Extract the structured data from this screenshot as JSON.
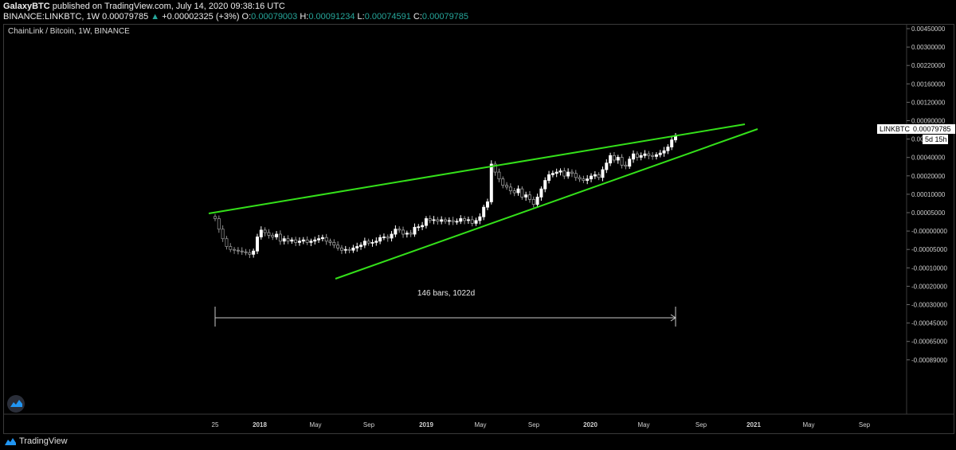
{
  "header": {
    "author": "GalaxyBTC",
    "published_text": "published on TradingView.com, July 14, 2020 09:38:16 UTC",
    "symbol_line": "BINANCE:LINKBTC, 1W",
    "last": "0.00079785",
    "change": "+0.00002325 (+3%)",
    "o_label": "O:",
    "o": "0.00079003",
    "h_label": "H:",
    "h": "0.00091234",
    "l_label": "L:",
    "l": "0.00074591",
    "c_label": "C:",
    "c": "0.00079785"
  },
  "footer": {
    "brand": "TradingView"
  },
  "chart_data": {
    "type": "candlestick",
    "title": "ChainLink / Bitcoin, 1W, BINANCE",
    "price_tag_symbol": "LINKBTC",
    "price_tag_value": "0.00079785",
    "countdown": "5d 15h",
    "measure_label": "146 bars, 1022d",
    "y_tick_labels": [
      "0.00450000",
      "0.00300000",
      "0.00220000",
      "0.00160000",
      "0.00120000",
      "0.00090000",
      "0.00060000",
      "0.00040000",
      "0.00020000",
      "0.00010000",
      "0.00005000",
      "-0.00000000",
      "-0.00005000",
      "-0.00010000",
      "-0.00020000",
      "-0.00030000",
      "-0.00045000",
      "-0.00065000",
      "-0.00089000"
    ],
    "x_tick_labels": [
      "25",
      "2018",
      "May",
      "Sep",
      "2019",
      "May",
      "Sep",
      "2020",
      "May",
      "Sep",
      "2021",
      "May",
      "Sep"
    ],
    "y_scale": "log-like (custom)",
    "trendlines": [
      {
        "name": "upper",
        "color": "#34e01a"
      },
      {
        "name": "lower",
        "color": "#34e01a"
      }
    ],
    "series": [
      {
        "name": "LINKBTC weekly close (approx.)",
        "values": [
          0.000115,
          9e-05,
          7.2e-05,
          6e-05,
          5.6e-05,
          5.5e-05,
          5.4e-05,
          5.3e-05,
          5.2e-05,
          5e-05,
          5.4e-05,
          7.5e-05,
          8.8e-05,
          8.3e-05,
          7.8e-05,
          7.5e-05,
          8e-05,
          6.8e-05,
          7.2e-05,
          6.8e-05,
          7e-05,
          6.6e-05,
          6.8e-05,
          7e-05,
          6.6e-05,
          6.8e-05,
          7e-05,
          7.2e-05,
          7.4e-05,
          6.8e-05,
          6.6e-05,
          6.2e-05,
          5.8e-05,
          5.5e-05,
          5.6e-05,
          5.5e-05,
          5.8e-05,
          6e-05,
          6.2e-05,
          6.8e-05,
          6.5e-05,
          6.6e-05,
          6.8e-05,
          7.4e-05,
          7.5e-05,
          7.3e-05,
          8e-05,
          9e-05,
          8.8e-05,
          8e-05,
          8.2e-05,
          8e-05,
          9.4e-05,
          9.5e-05,
          9.8e-05,
          0.000115,
          0.00011,
          0.000112,
          0.000108,
          0.000112,
          0.000108,
          0.00011,
          0.000107,
          0.000108,
          0.000115,
          0.00011,
          0.000112,
          0.000103,
          0.00011,
          0.00012,
          0.00015,
          0.00017,
          0.00041,
          0.00034,
          0.00029,
          0.00025,
          0.00024,
          0.00022,
          0.00021,
          0.00023,
          0.00019,
          0.0002,
          0.00018,
          0.00016,
          0.00019,
          0.00023,
          0.00028,
          0.00032,
          0.00033,
          0.00034,
          0.00035,
          0.00031,
          0.00034,
          0.00033,
          0.0003,
          0.00029,
          0.00028,
          0.00029,
          0.00031,
          0.00032,
          0.0003,
          0.00036,
          0.00042,
          0.0005,
          0.00045,
          0.00048,
          0.0004,
          0.00039,
          0.00046,
          0.00052,
          0.00048,
          0.0005,
          0.00052,
          0.0005,
          0.00049,
          0.00051,
          0.00053,
          0.00056,
          0.00061,
          0.00072,
          0.00079785
        ]
      }
    ]
  }
}
